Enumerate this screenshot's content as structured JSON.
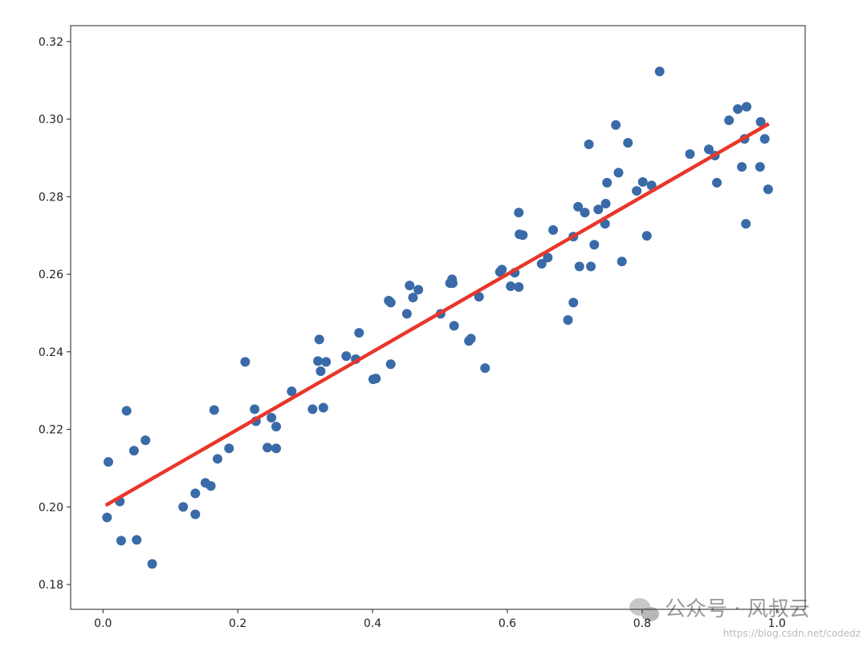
{
  "chart_data": {
    "type": "scatter",
    "xlim": [
      -0.048,
      1.042
    ],
    "ylim": [
      0.1736,
      0.3241
    ],
    "xticks": [
      {
        "value": 0.0,
        "label": "0.0"
      },
      0.2,
      0.4,
      0.6,
      0.8,
      {
        "value": 1.0,
        "label": "1.0"
      }
    ],
    "yticks": [
      0.18,
      {
        "value": 0.2,
        "label": "0.20"
      },
      0.22,
      0.24,
      0.26,
      0.28,
      {
        "value": 0.3,
        "label": "0.30"
      },
      0.32
    ],
    "grid": false,
    "series": [
      {
        "type": "scatter",
        "color": "#3a6aa8",
        "x": [
          0.006,
          0.008,
          0.025,
          0.027,
          0.035,
          0.046,
          0.05,
          0.063,
          0.073,
          0.119,
          0.137,
          0.137,
          0.152,
          0.16,
          0.165,
          0.17,
          0.187,
          0.211,
          0.225,
          0.227,
          0.244,
          0.25,
          0.257,
          0.257,
          0.28,
          0.311,
          0.319,
          0.321,
          0.323,
          0.327,
          0.331,
          0.361,
          0.375,
          0.38,
          0.401,
          0.405,
          0.424,
          0.427,
          0.427,
          0.451,
          0.455,
          0.46,
          0.468,
          0.501,
          0.515,
          0.518,
          0.519,
          0.521,
          0.543,
          0.546,
          0.558,
          0.567,
          0.589,
          0.592,
          0.605,
          0.611,
          0.617,
          0.617,
          0.618,
          0.623,
          0.651,
          0.66,
          0.668,
          0.69,
          0.698,
          0.698,
          0.705,
          0.707,
          0.715,
          0.721,
          0.724,
          0.729,
          0.735,
          0.745,
          0.746,
          0.748,
          0.761,
          0.765,
          0.77,
          0.779,
          0.792,
          0.801,
          0.807,
          0.814,
          0.826,
          0.871,
          0.899,
          0.908,
          0.911,
          0.929,
          0.942,
          0.948,
          0.952,
          0.954,
          0.955,
          0.975,
          0.976,
          0.982,
          0.987
        ],
        "y": [
          0.1973,
          0.2116,
          0.2014,
          0.1913,
          0.2248,
          0.2145,
          0.1915,
          0.2172,
          0.1853,
          0.2,
          0.2035,
          0.1981,
          0.2062,
          0.2054,
          0.225,
          0.2124,
          0.2151,
          0.2374,
          0.2252,
          0.2221,
          0.2153,
          0.223,
          0.2207,
          0.2151,
          0.2298,
          0.2252,
          0.2376,
          0.2432,
          0.235,
          0.2256,
          0.2374,
          0.2389,
          0.2381,
          0.2449,
          0.2329,
          0.2331,
          0.2532,
          0.2527,
          0.2368,
          0.2498,
          0.2571,
          0.254,
          0.256,
          0.2498,
          0.2577,
          0.2587,
          0.2577,
          0.2467,
          0.2428,
          0.2434,
          0.2542,
          0.2358,
          0.2606,
          0.2612,
          0.2569,
          0.2604,
          0.2759,
          0.2567,
          0.2703,
          0.2701,
          0.2627,
          0.2643,
          0.2714,
          0.2482,
          0.2527,
          0.2697,
          0.2774,
          0.262,
          0.2759,
          0.2935,
          0.262,
          0.2676,
          0.2767,
          0.273,
          0.2782,
          0.2836,
          0.2985,
          0.2862,
          0.2633,
          0.2939,
          0.2815,
          0.2838,
          0.2699,
          0.2829,
          0.3123,
          0.291,
          0.2922,
          0.2906,
          0.2836,
          0.2997,
          0.3026,
          0.2877,
          0.2949,
          0.273,
          0.3032,
          0.2877,
          0.2993,
          0.2949,
          0.2819
        ]
      },
      {
        "type": "line",
        "color": "#e8372a",
        "x": [
          0.004,
          0.988
        ],
        "y": [
          0.2004,
          0.2988
        ]
      }
    ],
    "annotations": [
      "公众号 · 风叔云",
      "https://blog.csdn.net/codedz"
    ]
  }
}
